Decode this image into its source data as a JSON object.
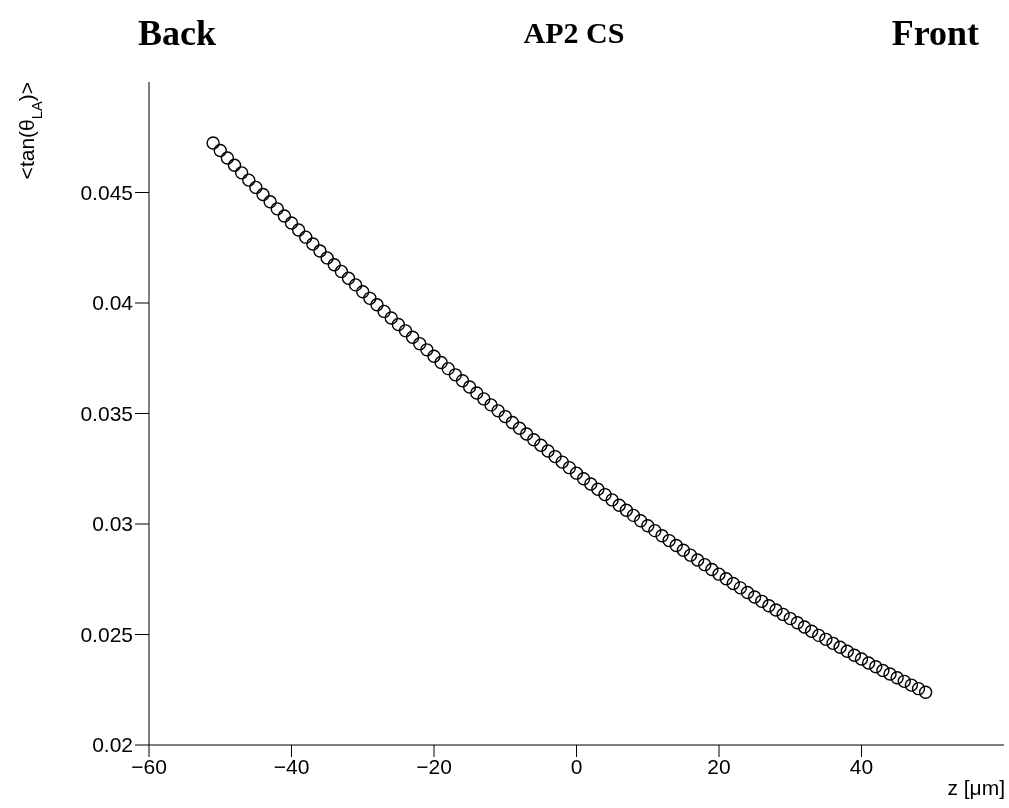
{
  "chart_data": {
    "type": "scatter",
    "title": "AP2 CS",
    "annotations": [
      "Back",
      "Front"
    ],
    "xlabel": "z [μm]",
    "ylabel": "<tan(θ$_{LA}$)>",
    "marker": "circle",
    "xlim": [
      -60,
      60
    ],
    "xticks": [
      -60,
      -40,
      -20,
      0,
      20,
      40
    ],
    "ylim": [
      0.02,
      0.05
    ],
    "yticks": [
      0.02,
      0.025,
      0.03,
      0.035,
      0.04,
      0.045
    ],
    "series": [
      {
        "color": "#000000",
        "x": [
          -51,
          -50,
          -49,
          -48,
          -47,
          -46,
          -45,
          -44,
          -43,
          -42,
          -41,
          -40,
          -39,
          -38,
          -37,
          -36,
          -35,
          -34,
          -33,
          -32,
          -31,
          -30,
          -29,
          -28,
          -27,
          -26,
          -25,
          -24,
          -23,
          -22,
          -21,
          -20,
          -19,
          -18,
          -17,
          -16,
          -15,
          -14,
          -13,
          -12,
          -11,
          -10,
          -9,
          -8,
          -7,
          -6,
          -5,
          -4,
          -3,
          -2,
          -1,
          0,
          1,
          2,
          3,
          4,
          5,
          6,
          7,
          8,
          9,
          10,
          11,
          12,
          13,
          14,
          15,
          16,
          17,
          18,
          19,
          20,
          21,
          22,
          23,
          24,
          25,
          26,
          27,
          28,
          29,
          30,
          31,
          32,
          33,
          34,
          35,
          36,
          37,
          38,
          39,
          40,
          41,
          42,
          43,
          44,
          45,
          46,
          47,
          48,
          49
        ],
        "values": [
          0.04724,
          0.0469,
          0.04656,
          0.04623,
          0.04589,
          0.04556,
          0.04523,
          0.04491,
          0.04458,
          0.04426,
          0.04394,
          0.04362,
          0.0433,
          0.04298,
          0.04267,
          0.04235,
          0.04204,
          0.04173,
          0.04143,
          0.04112,
          0.04082,
          0.04051,
          0.04021,
          0.03992,
          0.03962,
          0.03932,
          0.03903,
          0.03874,
          0.03845,
          0.03816,
          0.03788,
          0.03759,
          0.03731,
          0.03703,
          0.03675,
          0.03648,
          0.0362,
          0.03593,
          0.03566,
          0.03539,
          0.03512,
          0.03486,
          0.03459,
          0.03433,
          0.03407,
          0.03381,
          0.03356,
          0.0333,
          0.03305,
          0.0328,
          0.03255,
          0.0323,
          0.03205,
          0.03181,
          0.03157,
          0.03133,
          0.03109,
          0.03085,
          0.03062,
          0.03039,
          0.03015,
          0.02992,
          0.0297,
          0.02947,
          0.02925,
          0.02903,
          0.02881,
          0.02859,
          0.02837,
          0.02816,
          0.02794,
          0.02773,
          0.02752,
          0.02731,
          0.02711,
          0.0269,
          0.0267,
          0.0265,
          0.0263,
          0.02611,
          0.02591,
          0.02572,
          0.02553,
          0.02534,
          0.02515,
          0.02496,
          0.02478,
          0.0246,
          0.02442,
          0.02424,
          0.02406,
          0.02389,
          0.02371,
          0.02354,
          0.02337,
          0.02321,
          0.02304,
          0.02288,
          0.02271,
          0.02255,
          0.02239
        ]
      }
    ]
  }
}
